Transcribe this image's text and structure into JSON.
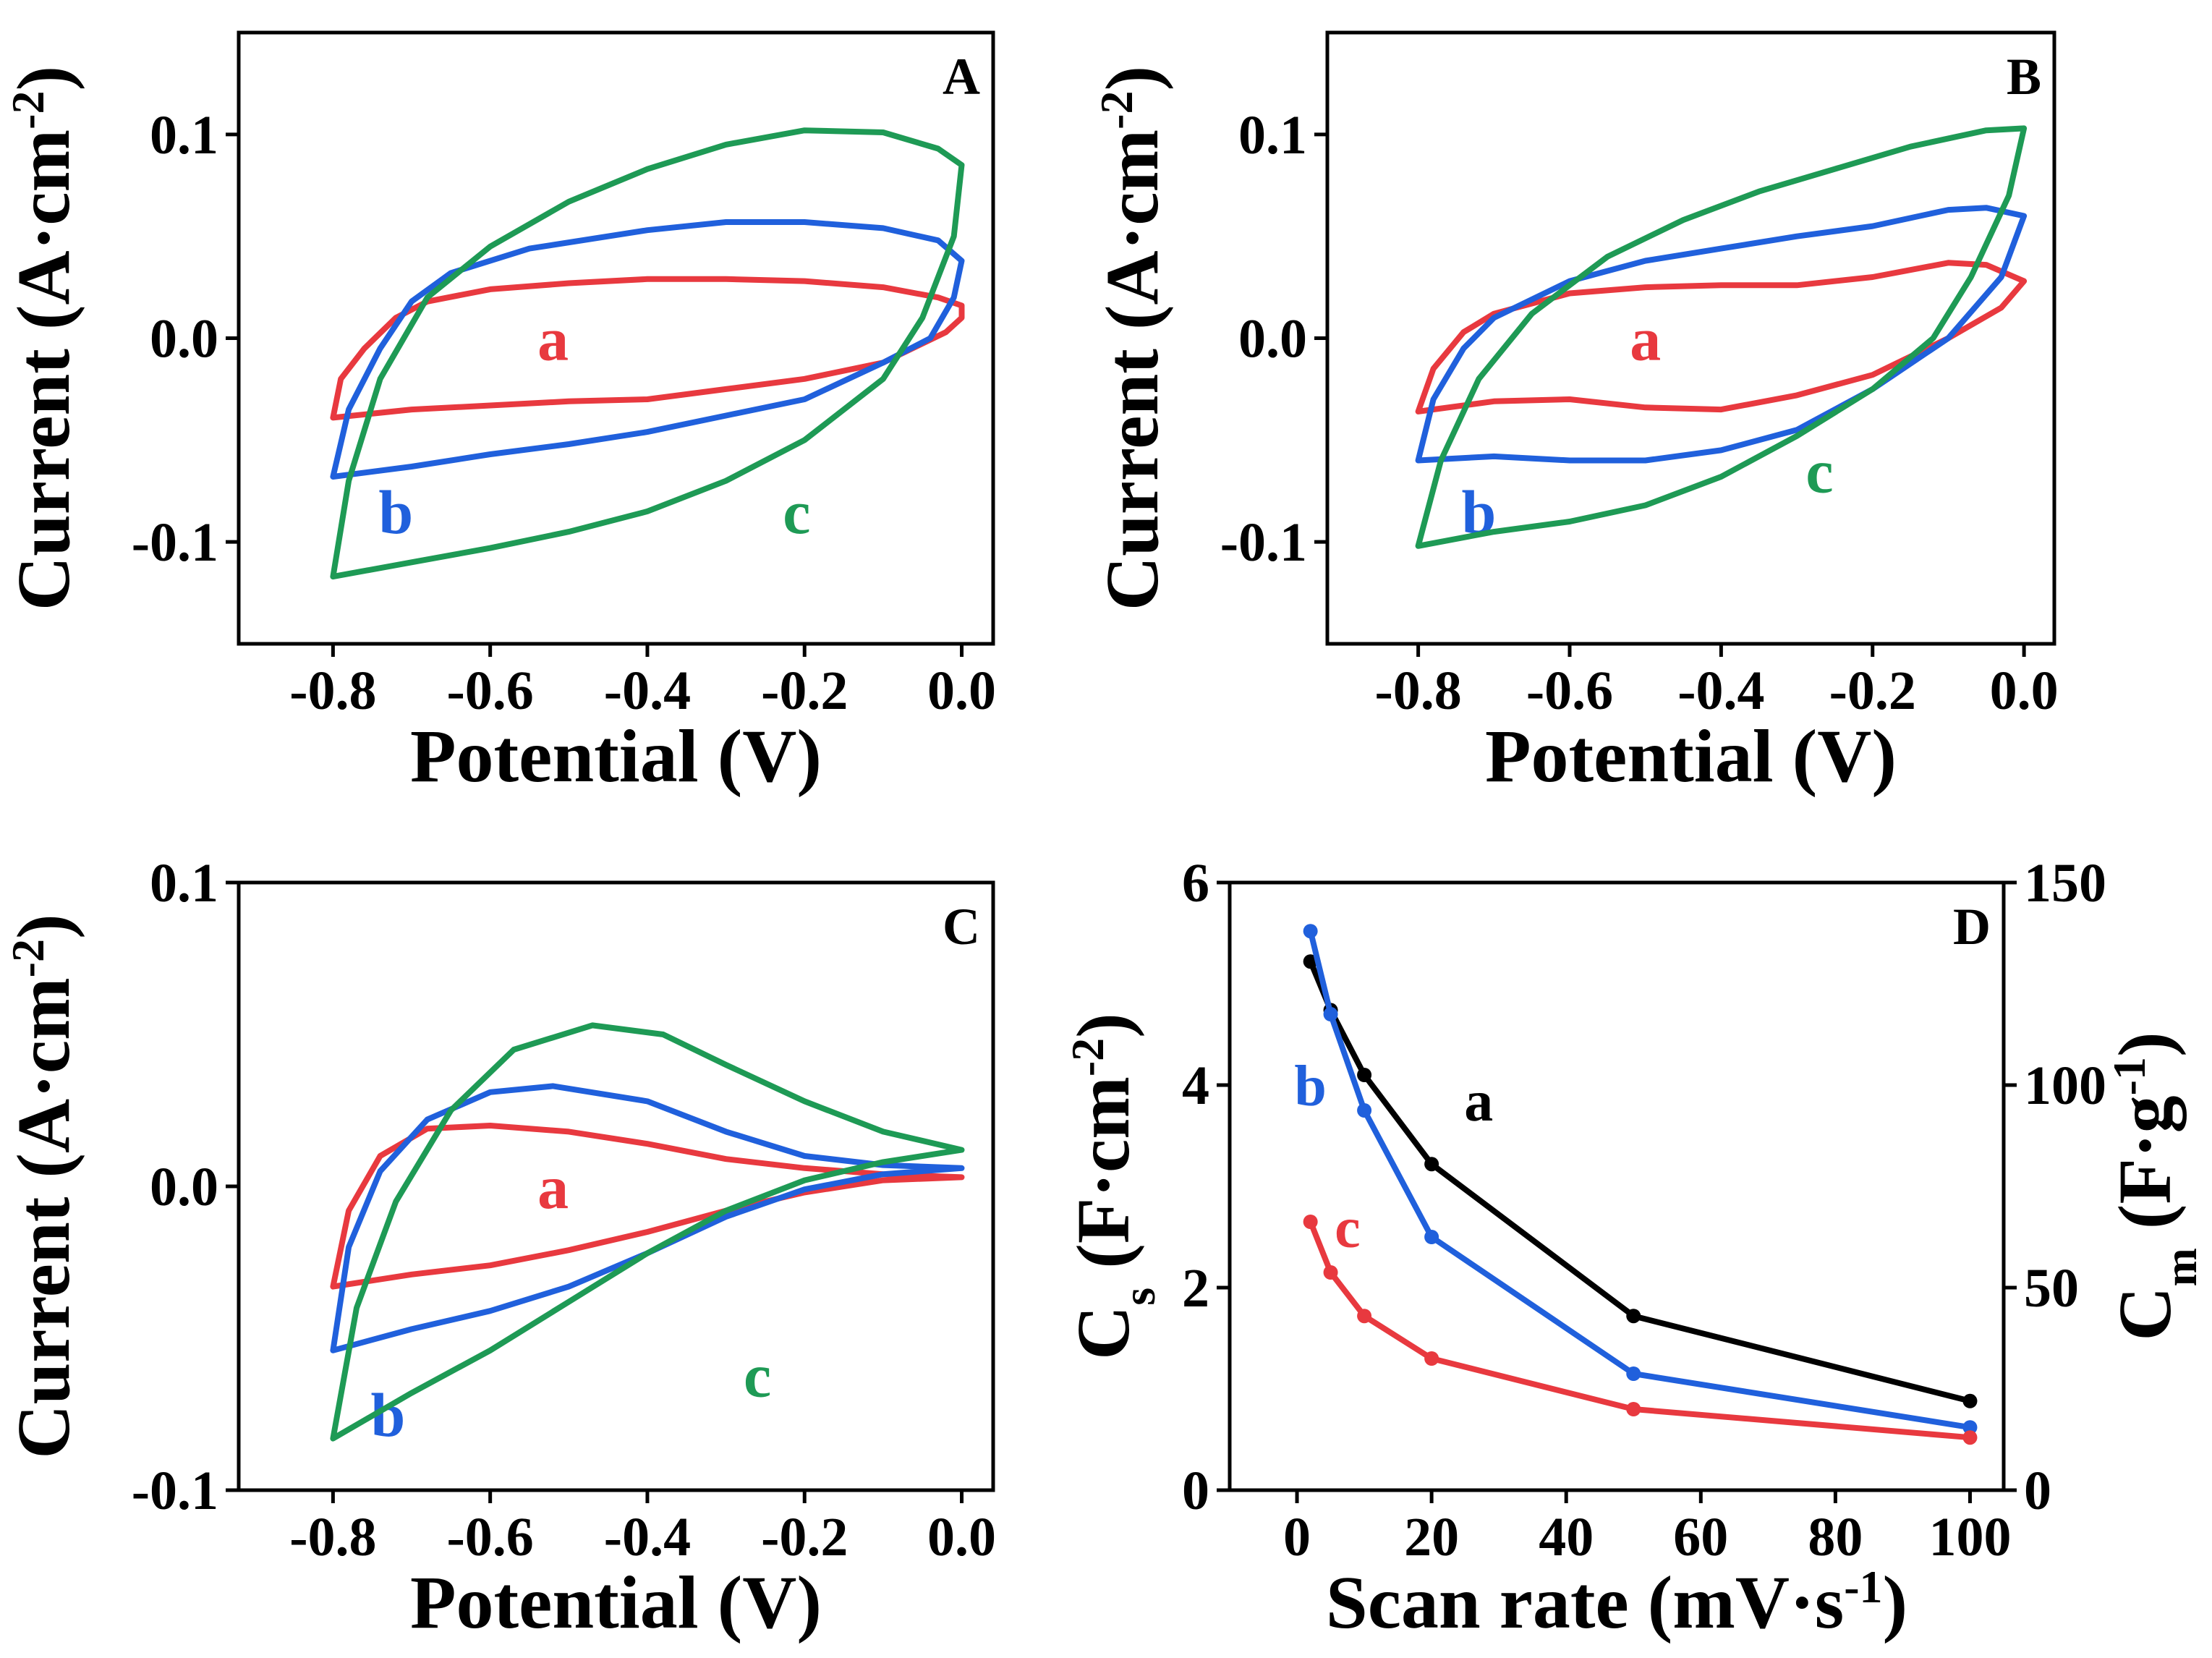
{
  "colors": {
    "a": "#e8393f",
    "b": "#2060dc",
    "c": "#1e9a55",
    "black": "#000000"
  },
  "chart_data": [
    {
      "panel": "A",
      "type": "line",
      "title": "A",
      "xlabel": "Potential (V)",
      "ylabel": "Current (A·cm",
      "ylabel_sup": "-2",
      "ylabel_close": ")",
      "xlim": [
        -0.92,
        0.04
      ],
      "ylim": [
        -0.15,
        0.15
      ],
      "xticks": [
        -0.8,
        -0.6,
        -0.4,
        -0.2,
        0.0
      ],
      "xtick_labels": [
        "-0.8",
        "-0.6",
        "-0.4",
        "-0.2",
        "0.0"
      ],
      "yticks": [
        -0.1,
        0.0,
        0.1
      ],
      "ytick_labels": [
        "-0.1",
        "0.0",
        "0.1"
      ],
      "series": [
        {
          "name": "a",
          "label": "a",
          "color_key": "a",
          "label_at": [
            -0.52,
            0.0
          ],
          "points": [
            [
              -0.8,
              -0.039
            ],
            [
              -0.79,
              -0.02
            ],
            [
              -0.76,
              -0.005
            ],
            [
              -0.72,
              0.01
            ],
            [
              -0.68,
              0.018
            ],
            [
              -0.6,
              0.024
            ],
            [
              -0.5,
              0.027
            ],
            [
              -0.4,
              0.029
            ],
            [
              -0.3,
              0.029
            ],
            [
              -0.2,
              0.028
            ],
            [
              -0.1,
              0.025
            ],
            [
              -0.03,
              0.02
            ],
            [
              0.0,
              0.016
            ],
            [
              0.0,
              0.01
            ],
            [
              -0.02,
              0.003
            ],
            [
              -0.1,
              -0.012
            ],
            [
              -0.2,
              -0.02
            ],
            [
              -0.3,
              -0.025
            ],
            [
              -0.4,
              -0.03
            ],
            [
              -0.5,
              -0.031
            ],
            [
              -0.6,
              -0.033
            ],
            [
              -0.7,
              -0.035
            ],
            [
              -0.8,
              -0.039
            ]
          ]
        },
        {
          "name": "b",
          "label": "b",
          "color_key": "b",
          "label_at": [
            -0.72,
            -0.085
          ],
          "points": [
            [
              -0.8,
              -0.068
            ],
            [
              -0.78,
              -0.035
            ],
            [
              -0.74,
              -0.005
            ],
            [
              -0.7,
              0.018
            ],
            [
              -0.65,
              0.032
            ],
            [
              -0.55,
              0.044
            ],
            [
              -0.4,
              0.053
            ],
            [
              -0.3,
              0.057
            ],
            [
              -0.2,
              0.057
            ],
            [
              -0.1,
              0.054
            ],
            [
              -0.03,
              0.048
            ],
            [
              0.0,
              0.038
            ],
            [
              -0.01,
              0.02
            ],
            [
              -0.04,
              0.0
            ],
            [
              -0.1,
              -0.012
            ],
            [
              -0.2,
              -0.03
            ],
            [
              -0.3,
              -0.038
            ],
            [
              -0.4,
              -0.046
            ],
            [
              -0.5,
              -0.052
            ],
            [
              -0.6,
              -0.057
            ],
            [
              -0.7,
              -0.063
            ],
            [
              -0.8,
              -0.068
            ]
          ]
        },
        {
          "name": "c",
          "label": "c",
          "color_key": "c",
          "label_at": [
            -0.21,
            -0.085
          ],
          "points": [
            [
              -0.8,
              -0.117
            ],
            [
              -0.78,
              -0.07
            ],
            [
              -0.74,
              -0.02
            ],
            [
              -0.68,
              0.02
            ],
            [
              -0.6,
              0.045
            ],
            [
              -0.5,
              0.067
            ],
            [
              -0.4,
              0.083
            ],
            [
              -0.3,
              0.095
            ],
            [
              -0.2,
              0.102
            ],
            [
              -0.1,
              0.101
            ],
            [
              -0.03,
              0.093
            ],
            [
              0.0,
              0.085
            ],
            [
              -0.01,
              0.05
            ],
            [
              -0.05,
              0.01
            ],
            [
              -0.1,
              -0.02
            ],
            [
              -0.2,
              -0.05
            ],
            [
              -0.3,
              -0.07
            ],
            [
              -0.4,
              -0.085
            ],
            [
              -0.5,
              -0.095
            ],
            [
              -0.6,
              -0.103
            ],
            [
              -0.7,
              -0.11
            ],
            [
              -0.8,
              -0.117
            ]
          ]
        }
      ]
    },
    {
      "panel": "B",
      "type": "line",
      "title": "B",
      "xlabel": "Potential (V)",
      "ylabel": "Current (A·cm",
      "ylabel_sup": "-2",
      "ylabel_close": ")",
      "xlim": [
        -0.92,
        0.04
      ],
      "ylim": [
        -0.15,
        0.15
      ],
      "xticks": [
        -0.8,
        -0.6,
        -0.4,
        -0.2,
        0.0
      ],
      "xtick_labels": [
        "-0.8",
        "-0.6",
        "-0.4",
        "-0.2",
        "0.0"
      ],
      "yticks": [
        -0.1,
        0.0,
        0.1
      ],
      "ytick_labels": [
        "-0.1",
        "0.0",
        "0.1"
      ],
      "series": [
        {
          "name": "a",
          "label": "a",
          "color_key": "a",
          "label_at": [
            -0.5,
            0.0
          ],
          "points": [
            [
              -0.8,
              -0.036
            ],
            [
              -0.78,
              -0.015
            ],
            [
              -0.74,
              0.003
            ],
            [
              -0.7,
              0.012
            ],
            [
              -0.6,
              0.022
            ],
            [
              -0.5,
              0.025
            ],
            [
              -0.4,
              0.026
            ],
            [
              -0.3,
              0.026
            ],
            [
              -0.2,
              0.03
            ],
            [
              -0.1,
              0.037
            ],
            [
              -0.05,
              0.036
            ],
            [
              0.0,
              0.028
            ],
            [
              -0.03,
              0.015
            ],
            [
              -0.1,
              0.0
            ],
            [
              -0.2,
              -0.018
            ],
            [
              -0.3,
              -0.028
            ],
            [
              -0.4,
              -0.035
            ],
            [
              -0.5,
              -0.034
            ],
            [
              -0.6,
              -0.03
            ],
            [
              -0.7,
              -0.031
            ],
            [
              -0.8,
              -0.036
            ]
          ]
        },
        {
          "name": "b",
          "label": "b",
          "color_key": "b",
          "label_at": [
            -0.72,
            -0.085
          ],
          "points": [
            [
              -0.8,
              -0.06
            ],
            [
              -0.78,
              -0.03
            ],
            [
              -0.74,
              -0.005
            ],
            [
              -0.7,
              0.01
            ],
            [
              -0.6,
              0.028
            ],
            [
              -0.5,
              0.038
            ],
            [
              -0.4,
              0.044
            ],
            [
              -0.3,
              0.05
            ],
            [
              -0.2,
              0.055
            ],
            [
              -0.1,
              0.063
            ],
            [
              -0.05,
              0.064
            ],
            [
              0.0,
              0.06
            ],
            [
              -0.03,
              0.03
            ],
            [
              -0.1,
              0.0
            ],
            [
              -0.2,
              -0.025
            ],
            [
              -0.3,
              -0.045
            ],
            [
              -0.4,
              -0.055
            ],
            [
              -0.5,
              -0.06
            ],
            [
              -0.6,
              -0.06
            ],
            [
              -0.7,
              -0.058
            ],
            [
              -0.8,
              -0.06
            ]
          ]
        },
        {
          "name": "c",
          "label": "c",
          "color_key": "c",
          "label_at": [
            -0.27,
            -0.065
          ],
          "points": [
            [
              -0.8,
              -0.102
            ],
            [
              -0.77,
              -0.06
            ],
            [
              -0.72,
              -0.02
            ],
            [
              -0.65,
              0.012
            ],
            [
              -0.55,
              0.04
            ],
            [
              -0.45,
              0.058
            ],
            [
              -0.35,
              0.072
            ],
            [
              -0.25,
              0.083
            ],
            [
              -0.15,
              0.094
            ],
            [
              -0.05,
              0.102
            ],
            [
              0.0,
              0.103
            ],
            [
              -0.02,
              0.07
            ],
            [
              -0.07,
              0.03
            ],
            [
              -0.12,
              0.0
            ],
            [
              -0.2,
              -0.025
            ],
            [
              -0.3,
              -0.048
            ],
            [
              -0.4,
              -0.068
            ],
            [
              -0.5,
              -0.082
            ],
            [
              -0.6,
              -0.09
            ],
            [
              -0.7,
              -0.095
            ],
            [
              -0.8,
              -0.102
            ]
          ]
        }
      ]
    },
    {
      "panel": "C",
      "type": "line",
      "title": "C",
      "xlabel": "Potential (V)",
      "ylabel": "Current (A·cm",
      "ylabel_sup": "-2",
      "ylabel_close": ")",
      "xlim": [
        -0.92,
        0.04
      ],
      "ylim": [
        -0.1,
        0.1
      ],
      "xticks": [
        -0.8,
        -0.6,
        -0.4,
        -0.2,
        0.0
      ],
      "xtick_labels": [
        "-0.8",
        "-0.6",
        "-0.4",
        "-0.2",
        "0.0"
      ],
      "yticks": [
        -0.1,
        0.0,
        0.1
      ],
      "ytick_labels": [
        "-0.1",
        "0.0",
        "0.1"
      ],
      "series": [
        {
          "name": "a",
          "label": "a",
          "color_key": "a",
          "label_at": [
            -0.52,
            0.0
          ],
          "points": [
            [
              -0.8,
              -0.033
            ],
            [
              -0.78,
              -0.008
            ],
            [
              -0.74,
              0.01
            ],
            [
              -0.68,
              0.019
            ],
            [
              -0.6,
              0.02
            ],
            [
              -0.5,
              0.018
            ],
            [
              -0.4,
              0.014
            ],
            [
              -0.3,
              0.009
            ],
            [
              -0.2,
              0.006
            ],
            [
              -0.1,
              0.004
            ],
            [
              0.0,
              0.003
            ],
            [
              -0.1,
              0.002
            ],
            [
              -0.2,
              -0.002
            ],
            [
              -0.3,
              -0.008
            ],
            [
              -0.4,
              -0.015
            ],
            [
              -0.5,
              -0.021
            ],
            [
              -0.6,
              -0.026
            ],
            [
              -0.7,
              -0.029
            ],
            [
              -0.8,
              -0.033
            ]
          ]
        },
        {
          "name": "b",
          "label": "b",
          "color_key": "b",
          "label_at": [
            -0.73,
            -0.075
          ],
          "points": [
            [
              -0.8,
              -0.054
            ],
            [
              -0.78,
              -0.02
            ],
            [
              -0.74,
              0.005
            ],
            [
              -0.68,
              0.022
            ],
            [
              -0.6,
              0.031
            ],
            [
              -0.52,
              0.033
            ],
            [
              -0.4,
              0.028
            ],
            [
              -0.3,
              0.018
            ],
            [
              -0.2,
              0.01
            ],
            [
              -0.1,
              0.007
            ],
            [
              0.0,
              0.006
            ],
            [
              -0.1,
              0.004
            ],
            [
              -0.2,
              -0.001
            ],
            [
              -0.3,
              -0.01
            ],
            [
              -0.4,
              -0.022
            ],
            [
              -0.5,
              -0.033
            ],
            [
              -0.6,
              -0.041
            ],
            [
              -0.7,
              -0.047
            ],
            [
              -0.8,
              -0.054
            ]
          ]
        },
        {
          "name": "c",
          "label": "c",
          "color_key": "c",
          "label_at": [
            -0.26,
            -0.062
          ],
          "points": [
            [
              -0.8,
              -0.083
            ],
            [
              -0.77,
              -0.04
            ],
            [
              -0.72,
              -0.005
            ],
            [
              -0.65,
              0.025
            ],
            [
              -0.57,
              0.045
            ],
            [
              -0.47,
              0.053
            ],
            [
              -0.38,
              0.05
            ],
            [
              -0.3,
              0.04
            ],
            [
              -0.2,
              0.028
            ],
            [
              -0.1,
              0.018
            ],
            [
              0.0,
              0.012
            ],
            [
              -0.1,
              0.008
            ],
            [
              -0.2,
              0.002
            ],
            [
              -0.3,
              -0.008
            ],
            [
              -0.4,
              -0.022
            ],
            [
              -0.5,
              -0.038
            ],
            [
              -0.6,
              -0.054
            ],
            [
              -0.7,
              -0.068
            ],
            [
              -0.8,
              -0.083
            ]
          ]
        }
      ]
    },
    {
      "panel": "D",
      "type": "line",
      "title": "D",
      "xlabel": "Scan rate (mV·s",
      "xlabel_sup": "-1",
      "xlabel_close": ")",
      "ylabel_left": "C",
      "ylabel_left_sub": "s",
      "ylabel_left_rest": " (F·cm",
      "ylabel_left_sup": "-2",
      "ylabel_left_close": ")",
      "ylabel_right": "C",
      "ylabel_right_sub": "m",
      "ylabel_right_rest": " (F·g",
      "ylabel_right_sup": "-1",
      "ylabel_right_close": ")",
      "xlim": [
        -10,
        105
      ],
      "ylim": [
        0,
        6
      ],
      "ylim_right": [
        0,
        150
      ],
      "xticks": [
        0,
        20,
        40,
        60,
        80,
        100
      ],
      "xtick_labels": [
        "0",
        "20",
        "40",
        "60",
        "80",
        "100"
      ],
      "yticks": [
        0,
        2,
        4,
        6
      ],
      "ytick_labels": [
        "0",
        "2",
        "4",
        "6"
      ],
      "yticks_right": [
        0,
        50,
        100,
        150
      ],
      "ytick_labels_right": [
        "0",
        "50",
        "100",
        "150"
      ],
      "x": [
        2,
        5,
        10,
        20,
        50,
        100
      ],
      "series": [
        {
          "name": "a",
          "label": "a",
          "color_key": "black",
          "label_at": [
            27,
            3.85
          ],
          "values": [
            5.22,
            4.74,
            4.1,
            3.22,
            1.72,
            0.88
          ]
        },
        {
          "name": "b",
          "label": "b",
          "color_key": "b",
          "label_at": [
            2,
            4.0
          ],
          "values": [
            5.52,
            4.7,
            3.75,
            2.5,
            1.15,
            0.62
          ]
        },
        {
          "name": "c",
          "label": "c",
          "color_key": "a",
          "label_at": [
            7.5,
            2.6
          ],
          "values": [
            2.65,
            2.15,
            1.72,
            1.3,
            0.8,
            0.52
          ]
        }
      ]
    }
  ]
}
